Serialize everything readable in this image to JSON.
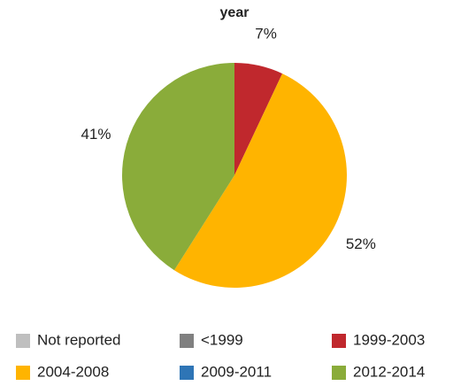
{
  "chart_data": {
    "type": "pie",
    "title": "year",
    "categories": [
      "Not reported",
      "<1999",
      "1999-2003",
      "2004-2008",
      "2009-2011",
      "2012-2014"
    ],
    "values": [
      0,
      0,
      7,
      52,
      0,
      41
    ],
    "value_labels": [
      null,
      null,
      "7%",
      "52%",
      null,
      "41%"
    ],
    "colors": [
      "#bfbfbf",
      "#808080",
      "#c0282d",
      "#ffb400",
      "#2e75b6",
      "#8aac3a"
    ],
    "legend": "bottom"
  }
}
